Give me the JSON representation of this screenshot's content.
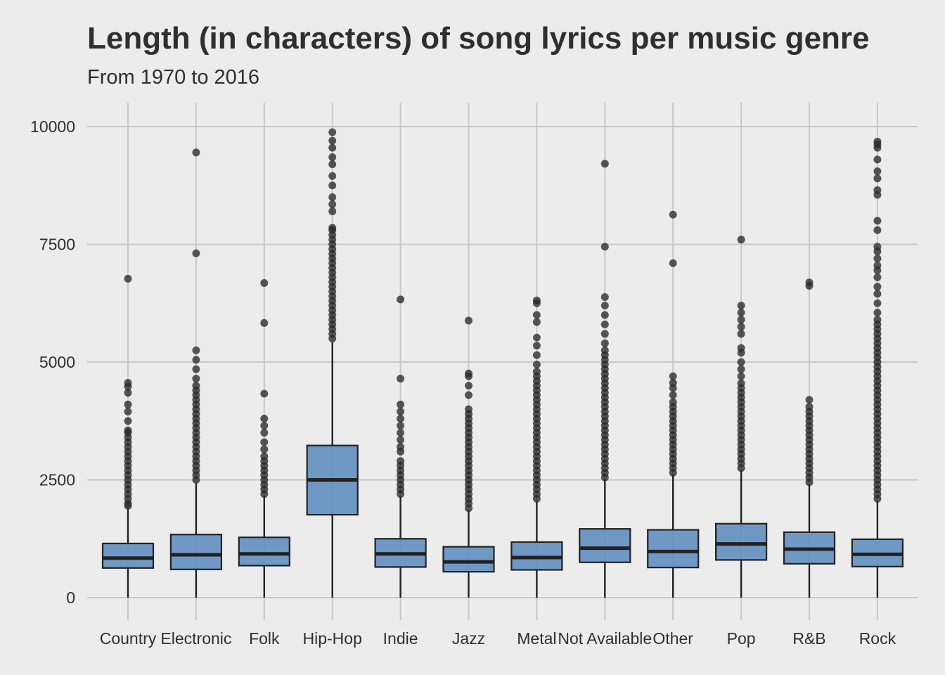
{
  "chart_data": {
    "type": "boxplot",
    "title": "Length (in characters) of song lyrics per music genre",
    "subtitle": "From 1970 to 2016",
    "xlabel": "",
    "ylabel": "",
    "ylim": [
      -400,
      10500
    ],
    "yticks": [
      0,
      2500,
      5000,
      7500,
      10000
    ],
    "grid": true,
    "colors": {
      "box_fill": "#5b89bd",
      "box_stroke": "#222222",
      "outlier": "#2a2a2a",
      "grid": "#c8c8c8",
      "background": "#ececec"
    },
    "categories": [
      "Country",
      "Electronic",
      "Folk",
      "Hip-Hop",
      "Indie",
      "Jazz",
      "Metal",
      "Not Available",
      "Other",
      "Pop",
      "R&B",
      "Rock"
    ],
    "boxes": [
      {
        "category": "Country",
        "min": 0,
        "q1": 630,
        "median": 840,
        "q3": 1150,
        "whisker_high": 1900,
        "outliers": [
          1950,
          2000,
          2100,
          2200,
          2300,
          2400,
          2500,
          2600,
          2700,
          2800,
          2900,
          3000,
          3100,
          3200,
          3300,
          3400,
          3500,
          3550,
          3750,
          3950,
          4100,
          4350,
          4480,
          4560,
          6770
        ]
      },
      {
        "category": "Electronic",
        "min": 0,
        "q1": 600,
        "median": 910,
        "q3": 1340,
        "whisker_high": 2430,
        "outliers": [
          2500,
          2600,
          2700,
          2800,
          2900,
          3000,
          3100,
          3200,
          3300,
          3400,
          3500,
          3600,
          3700,
          3800,
          3900,
          4000,
          4100,
          4200,
          4300,
          4400,
          4500,
          4650,
          4850,
          5050,
          5250,
          7310,
          9450
        ]
      },
      {
        "category": "Folk",
        "min": 0,
        "q1": 680,
        "median": 930,
        "q3": 1280,
        "whisker_high": 2160,
        "outliers": [
          2200,
          2300,
          2400,
          2500,
          2600,
          2700,
          2800,
          2900,
          3000,
          3150,
          3300,
          3500,
          3650,
          3800,
          4330,
          5830,
          6680
        ]
      },
      {
        "category": "Hip-Hop",
        "min": 0,
        "q1": 1760,
        "median": 2500,
        "q3": 3230,
        "whisker_high": 5430,
        "outliers": [
          5500,
          5600,
          5700,
          5800,
          5900,
          6000,
          6100,
          6200,
          6300,
          6400,
          6500,
          6600,
          6700,
          6800,
          6900,
          7000,
          7100,
          7200,
          7300,
          7400,
          7500,
          7600,
          7700,
          7800,
          7850,
          8200,
          8350,
          8500,
          8750,
          8950,
          9200,
          9350,
          9550,
          9700,
          9880
        ]
      },
      {
        "category": "Indie",
        "min": 0,
        "q1": 650,
        "median": 930,
        "q3": 1250,
        "whisker_high": 2150,
        "outliers": [
          2200,
          2300,
          2400,
          2500,
          2600,
          2700,
          2800,
          2900,
          3100,
          3200,
          3350,
          3500,
          3650,
          3800,
          3950,
          4100,
          4650,
          6330
        ]
      },
      {
        "category": "Jazz",
        "min": 0,
        "q1": 550,
        "median": 760,
        "q3": 1080,
        "whisker_high": 1850,
        "outliers": [
          1900,
          2000,
          2100,
          2200,
          2300,
          2400,
          2500,
          2600,
          2700,
          2800,
          2900,
          3000,
          3100,
          3200,
          3300,
          3400,
          3500,
          3600,
          3700,
          3800,
          3900,
          4000,
          4300,
          4500,
          4700,
          4760,
          5880
        ]
      },
      {
        "category": "Metal",
        "min": 0,
        "q1": 590,
        "median": 850,
        "q3": 1180,
        "whisker_high": 2050,
        "outliers": [
          2100,
          2200,
          2300,
          2400,
          2500,
          2600,
          2700,
          2800,
          2900,
          3000,
          3100,
          3200,
          3300,
          3400,
          3500,
          3600,
          3700,
          3800,
          3900,
          4000,
          4100,
          4200,
          4300,
          4400,
          4500,
          4600,
          4700,
          4800,
          4950,
          5150,
          5350,
          5520,
          5850,
          6000,
          6250,
          6310
        ]
      },
      {
        "category": "Not Available",
        "min": 0,
        "q1": 750,
        "median": 1050,
        "q3": 1460,
        "whisker_high": 2520,
        "outliers": [
          2550,
          2650,
          2750,
          2850,
          2950,
          3050,
          3150,
          3250,
          3350,
          3450,
          3550,
          3650,
          3750,
          3850,
          3950,
          4050,
          4150,
          4250,
          4350,
          4450,
          4550,
          4650,
          4750,
          4850,
          4950,
          5050,
          5150,
          5250,
          5400,
          5600,
          5800,
          6000,
          6200,
          6380,
          7450,
          9210
        ]
      },
      {
        "category": "Other",
        "min": 0,
        "q1": 640,
        "median": 980,
        "q3": 1440,
        "whisker_high": 2620,
        "outliers": [
          2650,
          2750,
          2850,
          2950,
          3050,
          3150,
          3250,
          3350,
          3450,
          3550,
          3650,
          3750,
          3850,
          3950,
          4050,
          4150,
          4300,
          4450,
          4560,
          4700,
          7100,
          8130
        ]
      },
      {
        "category": "Pop",
        "min": 0,
        "q1": 800,
        "median": 1140,
        "q3": 1570,
        "whisker_high": 2700,
        "outliers": [
          2750,
          2850,
          2950,
          3050,
          3150,
          3250,
          3350,
          3450,
          3550,
          3650,
          3750,
          3850,
          3950,
          4050,
          4150,
          4250,
          4350,
          4450,
          4550,
          4700,
          4850,
          5000,
          5200,
          5300,
          5600,
          5750,
          5900,
          6050,
          6200,
          7600
        ]
      },
      {
        "category": "R&B",
        "min": 0,
        "q1": 720,
        "median": 1030,
        "q3": 1390,
        "whisker_high": 2400,
        "outliers": [
          2450,
          2550,
          2650,
          2750,
          2850,
          2950,
          3050,
          3150,
          3250,
          3350,
          3450,
          3550,
          3650,
          3750,
          3850,
          3950,
          4050,
          4200,
          6620,
          6690
        ]
      },
      {
        "category": "Rock",
        "min": 0,
        "q1": 660,
        "median": 920,
        "q3": 1240,
        "whisker_high": 2050,
        "outliers": [
          2100,
          2200,
          2300,
          2400,
          2500,
          2600,
          2700,
          2800,
          2900,
          3000,
          3100,
          3200,
          3300,
          3400,
          3500,
          3600,
          3700,
          3800,
          3900,
          4000,
          4100,
          4200,
          4300,
          4400,
          4500,
          4600,
          4700,
          4800,
          4900,
          5000,
          5100,
          5200,
          5300,
          5400,
          5500,
          5600,
          5700,
          5800,
          5900,
          6050,
          6250,
          6450,
          6600,
          6800,
          6950,
          7050,
          7200,
          7350,
          7450,
          7800,
          8000,
          8550,
          8650,
          8900,
          9050,
          9300,
          9550,
          9620,
          9680
        ]
      }
    ]
  }
}
